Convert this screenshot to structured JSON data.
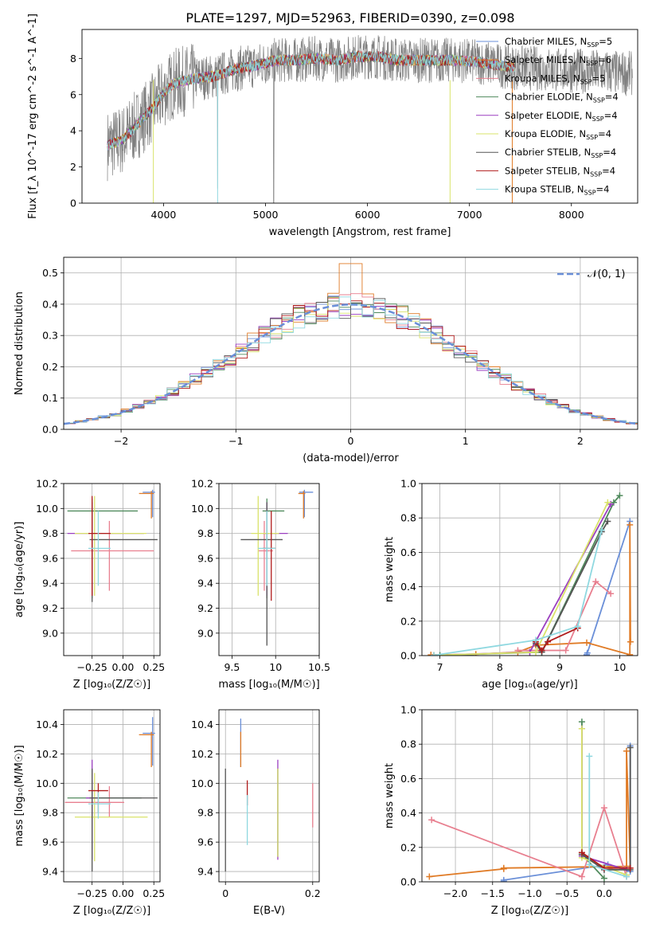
{
  "figure": {
    "title": "PLATE=1297, MJD=52963, FIBERID=0390, z=0.098"
  },
  "colors": {
    "Chabrier MILES": "#6a8fd8",
    "Salpeter MILES": "#e07b26",
    "Kroupa MILES": "#e87f8f",
    "Chabrier ELODIE": "#4f8a5c",
    "Salpeter ELODIE": "#9b3fc0",
    "Kroupa ELODIE": "#d9e36a",
    "Chabrier STELIB": "#555555",
    "Salpeter STELIB": "#b01c1c",
    "Kroupa STELIB": "#8fd8e0",
    "gaussian": "#6a8fd8"
  },
  "chart_data": [
    {
      "id": "spectrum",
      "type": "line",
      "xlabel": "wavelength [Angstrom, rest frame]",
      "ylabel": "Flux [f_λ 10^-17 erg cm^-2 s^-1 A^-1]",
      "xlim": [
        3200,
        8650
      ],
      "ylim": [
        0,
        9.6
      ],
      "xticks": [
        4000,
        5000,
        6000,
        7000,
        8000
      ],
      "yticks": [
        0,
        2,
        4,
        6,
        8
      ],
      "grid": false,
      "legend_position": "upper right",
      "continuum": {
        "x": [
          3450,
          3600,
          3700,
          3800,
          3900,
          4000,
          4100,
          4300,
          4500,
          4700,
          4900,
          5100,
          5300,
          5500,
          5700,
          5900,
          6100,
          6300,
          6500,
          6700,
          6900,
          7100,
          7300,
          7450
        ],
        "y": [
          3.2,
          3.5,
          4.1,
          4.7,
          5.3,
          6.1,
          6.6,
          6.9,
          7.0,
          7.4,
          7.6,
          7.9,
          7.9,
          8.0,
          7.9,
          8.1,
          8.1,
          7.9,
          7.9,
          7.9,
          7.9,
          7.8,
          7.6,
          7.5
        ]
      },
      "observed_noise_max": 1.8,
      "model_end": 7450,
      "legend": [
        {
          "label": "Chabrier MILES, N",
          "sub": "SSP",
          "tail": "=5"
        },
        {
          "label": "Salpeter MILES, N",
          "sub": "SSP",
          "tail": "=6"
        },
        {
          "label": "Kroupa MILES, N",
          "sub": "SSP",
          "tail": "=5"
        },
        {
          "label": "Chabrier ELODIE, N",
          "sub": "SSP",
          "tail": "=4"
        },
        {
          "label": "Salpeter ELODIE, N",
          "sub": "SSP",
          "tail": "=4"
        },
        {
          "label": "Kroupa ELODIE, N",
          "sub": "SSP",
          "tail": "=4"
        },
        {
          "label": "Chabrier STELIB, N",
          "sub": "SSP",
          "tail": "=4"
        },
        {
          "label": "Salpeter STELIB, N",
          "sub": "SSP",
          "tail": "=4"
        },
        {
          "label": "Kroupa STELIB, N",
          "sub": "SSP",
          "tail": "=4"
        }
      ]
    },
    {
      "id": "residuals",
      "type": "line",
      "xlabel": "(data-model)/error",
      "ylabel": "Normed distribution",
      "xlim": [
        -2.5,
        2.5
      ],
      "ylim": [
        0,
        0.55
      ],
      "xticks": [
        -2,
        -1,
        0,
        1,
        2
      ],
      "yticks": [
        0.0,
        0.1,
        0.2,
        0.3,
        0.4,
        0.5
      ],
      "grid": true,
      "legend_position": "upper right",
      "legend_label": "𝒩(0, 1)",
      "gaussian": {
        "mu": 0,
        "sigma": 1
      }
    },
    {
      "id": "age-Z",
      "type": "scatter",
      "xlabel": "Z [log₁₀(Z/Z☉)]",
      "ylabel": "age  [log₁₀(age/yr)]",
      "xlim": [
        -0.48,
        0.3
      ],
      "ylim": [
        8.82,
        10.2
      ],
      "xticks": [
        -0.25,
        0.0,
        0.25
      ],
      "xticklabels": [
        "−0.25",
        "0.00",
        "0.25"
      ],
      "yticks": [
        9.0,
        9.2,
        9.4,
        9.6,
        9.8,
        10.0,
        10.2
      ],
      "grid": true,
      "points": [
        {
          "series": "Chabrier MILES",
          "x": 0.24,
          "y": 10.13,
          "xerr": [
            0.08,
            0.02
          ],
          "yerr": [
            0.2,
            0.02
          ]
        },
        {
          "series": "Salpeter MILES",
          "x": 0.23,
          "y": 10.12,
          "xerr": [
            0.1,
            0.02
          ],
          "yerr": [
            0.2,
            0.02
          ]
        },
        {
          "series": "Kroupa MILES",
          "x": -0.11,
          "y": 9.66,
          "xerr": [
            0.31,
            0.36
          ],
          "yerr": [
            0.32,
            0.24
          ]
        },
        {
          "series": "Chabrier ELODIE",
          "x": -0.25,
          "y": 9.98,
          "xerr": [
            0.2,
            0.37
          ],
          "yerr": [
            0.7,
            0.1
          ]
        },
        {
          "series": "Salpeter ELODIE",
          "x": -0.25,
          "y": 9.8,
          "xerr": [
            0.2,
            0.42
          ],
          "yerr": [
            0.5,
            0.25
          ]
        },
        {
          "series": "Kroupa ELODIE",
          "x": -0.23,
          "y": 9.8,
          "xerr": [
            0.16,
            0.42
          ],
          "yerr": [
            0.5,
            0.3
          ]
        },
        {
          "series": "Chabrier STELIB",
          "x": -0.25,
          "y": 9.75,
          "xerr": [
            0.02,
            0.53
          ],
          "yerr": [
            0.5,
            0.3
          ]
        },
        {
          "series": "Salpeter STELIB",
          "x": -0.25,
          "y": 9.8,
          "xerr": [
            0.03,
            0.15
          ],
          "yerr": [
            0.5,
            0.3
          ]
        },
        {
          "series": "Kroupa STELIB",
          "x": -0.2,
          "y": 9.68,
          "xerr": [
            0.08,
            0.1
          ],
          "yerr": [
            0.3,
            0.3
          ]
        }
      ]
    },
    {
      "id": "age-mass",
      "type": "scatter",
      "xlabel": "mass [log₁₀(M/M☉)]",
      "ylabel": "",
      "xlim": [
        9.35,
        10.5
      ],
      "ylim": [
        8.82,
        10.2
      ],
      "xticks": [
        9.5,
        10.0,
        10.5
      ],
      "yticks": [
        9.0,
        9.2,
        9.4,
        9.6,
        9.8,
        10.0,
        10.2
      ],
      "grid": true,
      "points": [
        {
          "series": "Chabrier MILES",
          "x": 10.33,
          "y": 10.13,
          "xerr": [
            0.06,
            0.1
          ],
          "yerr": [
            0.2,
            0.02
          ]
        },
        {
          "series": "Salpeter MILES",
          "x": 10.32,
          "y": 10.12,
          "xerr": [
            0.06,
            0.02
          ],
          "yerr": [
            0.2,
            0.02
          ]
        },
        {
          "series": "Kroupa MILES",
          "x": 9.87,
          "y": 9.66,
          "xerr": [
            0.07,
            0.1
          ],
          "yerr": [
            0.32,
            0.24
          ]
        },
        {
          "series": "Chabrier ELODIE",
          "x": 9.9,
          "y": 9.98,
          "xerr": [
            0.05,
            0.2
          ],
          "yerr": [
            0.7,
            0.1
          ]
        },
        {
          "series": "Salpeter ELODIE",
          "x": 9.9,
          "y": 9.8,
          "xerr": [
            0.05,
            0.24
          ],
          "yerr": [
            0.5,
            0.25
          ]
        },
        {
          "series": "Kroupa ELODIE",
          "x": 9.8,
          "y": 9.8,
          "xerr": [
            0.08,
            0.24
          ],
          "yerr": [
            0.5,
            0.3
          ]
        },
        {
          "series": "Chabrier STELIB",
          "x": 9.9,
          "y": 9.75,
          "xerr": [
            0.3,
            0.18
          ],
          "yerr": [
            0.85,
            0.3
          ]
        },
        {
          "series": "Salpeter STELIB",
          "x": 9.95,
          "y": 9.68,
          "xerr": [
            0.1,
            0.05
          ],
          "yerr": [
            0.42,
            0.3
          ]
        },
        {
          "series": "Kroupa STELIB",
          "x": 9.9,
          "y": 9.68,
          "xerr": [
            0.1,
            0.1
          ],
          "yerr": [
            0.3,
            0.3
          ]
        }
      ]
    },
    {
      "id": "weight-age",
      "type": "line",
      "xlabel": "age  [log₁₀(age/yr)]",
      "ylabel": "mass weight",
      "xlim": [
        6.7,
        10.3
      ],
      "ylim": [
        0,
        1.0
      ],
      "xticks": [
        7,
        8,
        9,
        10
      ],
      "yticks": [
        0.0,
        0.2,
        0.4,
        0.6,
        0.8,
        1.0
      ],
      "grid": true,
      "series": [
        {
          "name": "Chabrier MILES",
          "x": [
            9.45,
            9.46,
            10.17
          ],
          "y": [
            0.005,
            0.015,
            0.78
          ]
        },
        {
          "name": "Salpeter MILES",
          "x": [
            6.85,
            7.6,
            8.3,
            8.6,
            9.45,
            10.17,
            10.17,
            10.18
          ],
          "y": [
            0.004,
            0.008,
            0.02,
            0.06,
            0.075,
            0.005,
            0.76,
            0.08
          ]
        },
        {
          "name": "Kroupa MILES",
          "x": [
            8.3,
            9.1,
            9.6,
            9.85
          ],
          "y": [
            0.03,
            0.03,
            0.43,
            0.36
          ]
        },
        {
          "name": "Chabrier ELODIE",
          "x": [
            7.0,
            8.7,
            9.9,
            10.0
          ],
          "y": [
            0.002,
            0.02,
            0.89,
            0.93
          ]
        },
        {
          "name": "Salpeter ELODIE",
          "x": [
            6.9,
            8.5,
            9.85
          ],
          "y": [
            0.002,
            0.02,
            0.88
          ]
        },
        {
          "name": "Kroupa ELODIE",
          "x": [
            6.9,
            8.6,
            9.8
          ],
          "y": [
            0.002,
            0.02,
            0.89
          ]
        },
        {
          "name": "Chabrier STELIB",
          "x": [
            8.6,
            8.7,
            9.7,
            9.8
          ],
          "y": [
            0.07,
            0.02,
            0.72,
            0.78
          ]
        },
        {
          "name": "Salpeter STELIB",
          "x": [
            8.6,
            8.7,
            8.8,
            9.3
          ],
          "y": [
            0.08,
            0.03,
            0.08,
            0.16
          ]
        },
        {
          "name": "Kroupa STELIB",
          "x": [
            6.9,
            8.6,
            9.3,
            9.7
          ],
          "y": [
            0.002,
            0.09,
            0.17,
            0.73
          ]
        }
      ]
    },
    {
      "id": "mass-Z",
      "type": "scatter",
      "xlabel": "Z [log₁₀(Z/Z☉)]",
      "ylabel": "mass [log₁₀(M/M☉)]",
      "xlim": [
        -0.48,
        0.3
      ],
      "ylim": [
        9.33,
        10.5
      ],
      "xticks": [
        -0.25,
        0.0,
        0.25
      ],
      "xticklabels": [
        "−0.25",
        "0.00",
        "0.25"
      ],
      "yticks": [
        9.4,
        9.6,
        9.8,
        10.0,
        10.2,
        10.4
      ],
      "grid": true,
      "points": [
        {
          "series": "Chabrier MILES",
          "x": 0.24,
          "y": 10.34,
          "xerr": [
            0.08,
            0.02
          ],
          "yerr": [
            0.22,
            0.11
          ]
        },
        {
          "series": "Salpeter MILES",
          "x": 0.23,
          "y": 10.33,
          "xerr": [
            0.1,
            0.02
          ],
          "yerr": [
            0.22,
            0.02
          ]
        },
        {
          "series": "Kroupa MILES",
          "x": -0.11,
          "y": 9.87,
          "xerr": [
            0.36,
            0.12
          ],
          "yerr": [
            0.1,
            0.11
          ]
        },
        {
          "series": "Chabrier ELODIE",
          "x": -0.25,
          "y": 9.9,
          "xerr": [
            0.2,
            0.4
          ],
          "yerr": [
            0.35,
            0.12
          ]
        },
        {
          "series": "Salpeter ELODIE",
          "x": -0.25,
          "y": 9.9,
          "xerr": [
            0.05,
            0.05
          ],
          "yerr": [
            0.42,
            0.26
          ]
        },
        {
          "series": "Kroupa ELODIE",
          "x": -0.23,
          "y": 9.77,
          "xerr": [
            0.16,
            0.43
          ],
          "yerr": [
            0.3,
            0.3
          ]
        },
        {
          "series": "Chabrier STELIB",
          "x": -0.25,
          "y": 9.9,
          "xerr": [
            0.02,
            0.53
          ],
          "yerr": [
            0.5,
            0.2
          ]
        },
        {
          "series": "Salpeter STELIB",
          "x": -0.2,
          "y": 9.95,
          "xerr": [
            0.08,
            0.08
          ],
          "yerr": [
            0.15,
            0.05
          ]
        },
        {
          "series": "Kroupa STELIB",
          "x": -0.2,
          "y": 9.86,
          "xerr": [
            0.08,
            0.1
          ],
          "yerr": [
            0.1,
            0.08
          ]
        }
      ]
    },
    {
      "id": "mass-ebv",
      "type": "scatter",
      "xlabel": "E(B-V)",
      "ylabel": "",
      "xlim": [
        -0.015,
        0.215
      ],
      "ylim": [
        9.33,
        10.5
      ],
      "xticks": [
        0.0,
        0.2
      ],
      "yticks": [
        9.4,
        9.6,
        9.8,
        10.0,
        10.2,
        10.4
      ],
      "grid": true,
      "points": [
        {
          "series": "Chabrier MILES",
          "x": 0.035,
          "y": 10.33,
          "xerr": [
            0,
            0
          ],
          "yerr": [
            0.22,
            0.11
          ]
        },
        {
          "series": "Salpeter MILES",
          "x": 0.035,
          "y": 10.33,
          "xerr": [
            0,
            0
          ],
          "yerr": [
            0.22,
            0.02
          ]
        },
        {
          "series": "Kroupa MILES",
          "x": 0.2,
          "y": 9.85,
          "xerr": [
            0,
            0
          ],
          "yerr": [
            0.15,
            0.15
          ]
        },
        {
          "series": "Chabrier ELODIE",
          "x": 0.12,
          "y": 9.9,
          "xerr": [
            0,
            0
          ],
          "yerr": [
            0.4,
            0.2
          ]
        },
        {
          "series": "Salpeter ELODIE",
          "x": 0.12,
          "y": 9.9,
          "xerr": [
            0,
            0
          ],
          "yerr": [
            0.42,
            0.26
          ]
        },
        {
          "series": "Kroupa ELODIE",
          "x": 0.12,
          "y": 9.8,
          "xerr": [
            0,
            0
          ],
          "yerr": [
            0.3,
            0.3
          ]
        },
        {
          "series": "Chabrier STELIB",
          "x": 0.0,
          "y": 9.8,
          "xerr": [
            0,
            0
          ],
          "yerr": [
            0.4,
            0.3
          ]
        },
        {
          "series": "Salpeter STELIB",
          "x": 0.05,
          "y": 9.9,
          "xerr": [
            0,
            0
          ],
          "yerr": [
            0.05,
            0.12
          ]
        },
        {
          "series": "Kroupa STELIB",
          "x": 0.05,
          "y": 9.8,
          "xerr": [
            0,
            0
          ],
          "yerr": [
            0.22,
            0.12
          ]
        }
      ]
    },
    {
      "id": "weight-Z",
      "type": "line",
      "xlabel": "Z [log₁₀(Z/Z☉)]",
      "ylabel": "mass weight",
      "xlim": [
        -2.45,
        0.45
      ],
      "ylim": [
        0,
        1.0
      ],
      "xticks": [
        -2.0,
        -1.5,
        -1.0,
        -0.5,
        0.0
      ],
      "xticklabels": [
        "−2.0",
        "−1.5",
        "−1.0",
        "−0.5",
        "0.0"
      ],
      "yticks": [
        0.0,
        0.2,
        0.4,
        0.6,
        0.8,
        1.0
      ],
      "grid": true,
      "series": [
        {
          "name": "Chabrier MILES",
          "x": [
            -1.35,
            -1.35,
            0.05,
            0.35,
            0.35
          ],
          "y": [
            0.002,
            0.01,
            0.1,
            0.06,
            0.79
          ]
        },
        {
          "name": "Salpeter MILES",
          "x": [
            -2.35,
            -1.35,
            -1.35,
            0.3,
            0.3,
            0.35
          ],
          "y": [
            0.03,
            0.075,
            0.08,
            0.09,
            0.76,
            0.08
          ]
        },
        {
          "name": "Kroupa MILES",
          "x": [
            -2.32,
            -0.3,
            0.0,
            0.3
          ],
          "y": [
            0.36,
            0.03,
            0.43,
            0.03
          ]
        },
        {
          "name": "Chabrier ELODIE",
          "x": [
            -0.3,
            -0.3,
            0.0
          ],
          "y": [
            0.93,
            0.16,
            0.02
          ]
        },
        {
          "name": "Salpeter ELODIE",
          "x": [
            -0.3,
            -0.3,
            0.3
          ],
          "y": [
            0.89,
            0.15,
            0.07
          ]
        },
        {
          "name": "Kroupa ELODIE",
          "x": [
            -0.3,
            -0.3,
            0.3
          ],
          "y": [
            0.89,
            0.14,
            0.04
          ]
        },
        {
          "name": "Chabrier STELIB",
          "x": [
            -0.3,
            0.0,
            0.35,
            0.35
          ],
          "y": [
            0.16,
            0.07,
            0.07,
            0.78
          ]
        },
        {
          "name": "Salpeter STELIB",
          "x": [
            -0.3,
            0.0,
            0.35
          ],
          "y": [
            0.17,
            0.08,
            0.08
          ]
        },
        {
          "name": "Kroupa STELIB",
          "x": [
            -0.2,
            -0.2,
            0.3
          ],
          "y": [
            0.73,
            0.1,
            0.03
          ]
        }
      ]
    }
  ]
}
